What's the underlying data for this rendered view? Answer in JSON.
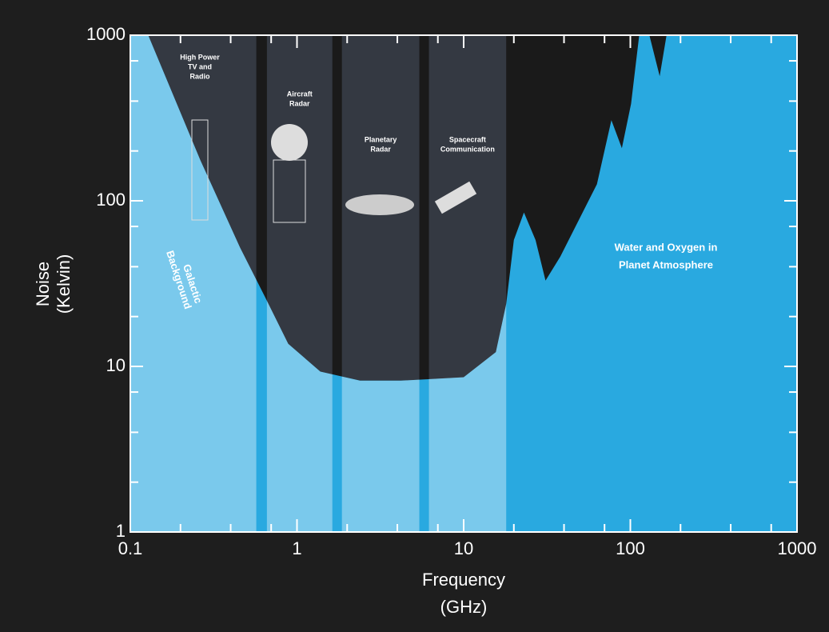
{
  "chart_data": {
    "type": "area",
    "x_label": [
      "Frequency",
      "(GHz)"
    ],
    "y_label": [
      "Noise",
      "(Kelvin)"
    ],
    "log_x": true,
    "log_y": true,
    "xlim": [
      0.1,
      1000
    ],
    "xticks": [
      0.1,
      1,
      10,
      100,
      1000
    ],
    "xminorticks": [
      0.2,
      0.4,
      0.7,
      2,
      4,
      7,
      20,
      40,
      70,
      200,
      400,
      700
    ],
    "ylim": [
      1,
      1000
    ],
    "yticks": [
      1,
      10,
      100,
      1000
    ],
    "yminorticks": [
      2,
      4,
      7,
      20,
      40,
      70,
      200,
      400,
      700
    ],
    "color": "#29a9e0",
    "x": [
      0.128,
      0.263,
      0.456,
      0.64,
      0.886,
      1.38,
      2.39,
      4.2,
      10,
      15.6,
      18,
      20,
      23,
      27,
      31,
      38,
      63,
      77,
      89,
      101,
      113,
      130,
      150,
      165,
      1000
    ],
    "values": [
      1000,
      176,
      52,
      26.5,
      13.7,
      9.3,
      8.2,
      8.2,
      8.6,
      12.2,
      23.8,
      58,
      85,
      58,
      33,
      46,
      126,
      307,
      208,
      385,
      1000,
      1000,
      565,
      1000,
      1000
    ],
    "bands": [
      {
        "label": [
          "High Power",
          "TV and",
          "Radio"
        ],
        "start": 0.1,
        "end": 0.57
      },
      {
        "label": [
          "Aircraft",
          "Radar"
        ],
        "start": 0.66,
        "end": 1.63
      },
      {
        "label": [
          "Planetary",
          "Radar"
        ],
        "start": 1.86,
        "end": 5.42
      },
      {
        "label": [
          "Spacecraft",
          "Communication"
        ],
        "start": 6.19,
        "end": 18
      }
    ],
    "annotations": [
      {
        "text": [
          "Galactic",
          "Background"
        ]
      },
      {
        "text": [
          "Water and Oxygen in",
          "Planet Atmosphere"
        ]
      }
    ]
  }
}
